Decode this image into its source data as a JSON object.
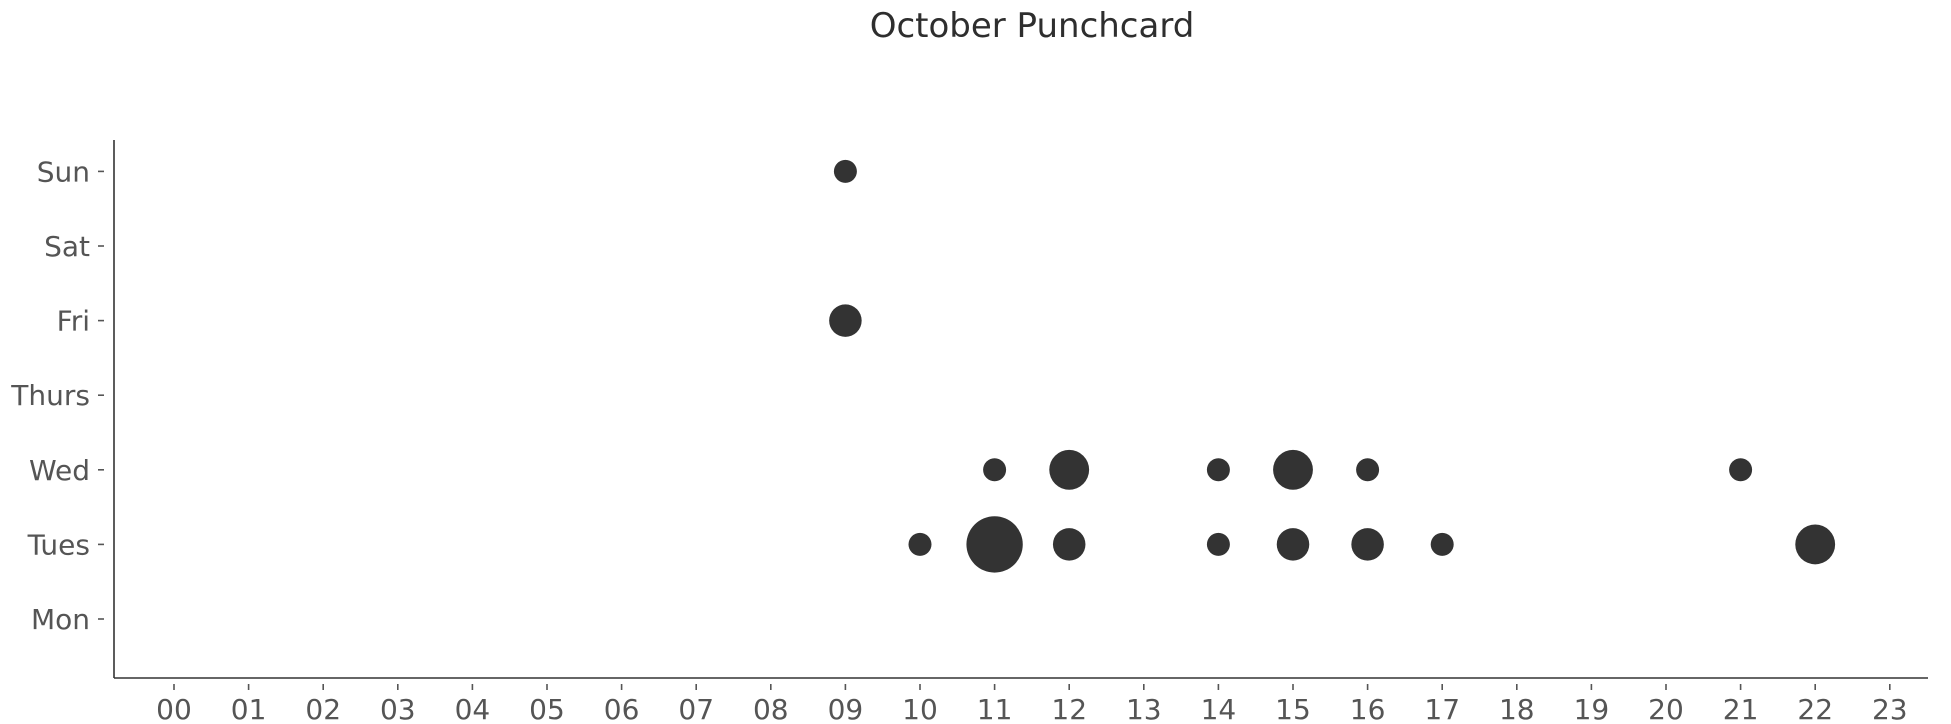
{
  "chart_data": {
    "type": "scatter",
    "title": "October Punchcard",
    "xlabel": "",
    "ylabel": "",
    "x_categories": [
      "00",
      "01",
      "02",
      "03",
      "04",
      "05",
      "06",
      "07",
      "08",
      "09",
      "10",
      "11",
      "12",
      "13",
      "14",
      "15",
      "16",
      "17",
      "18",
      "19",
      "20",
      "21",
      "22",
      "23"
    ],
    "y_categories": [
      "Mon",
      "Tues",
      "Wed",
      "Thurs",
      "Fri",
      "Sat",
      "Sun"
    ],
    "grid": false,
    "legend": "none",
    "marker_color": "#2b2b2b",
    "size_encoding": "count",
    "points": [
      {
        "day": "Sun",
        "hour": "09",
        "count": 1
      },
      {
        "day": "Fri",
        "hour": "09",
        "count": 2
      },
      {
        "day": "Wed",
        "hour": "11",
        "count": 1
      },
      {
        "day": "Wed",
        "hour": "12",
        "count": 3
      },
      {
        "day": "Wed",
        "hour": "14",
        "count": 1
      },
      {
        "day": "Wed",
        "hour": "15",
        "count": 3
      },
      {
        "day": "Wed",
        "hour": "16",
        "count": 1
      },
      {
        "day": "Wed",
        "hour": "21",
        "count": 1
      },
      {
        "day": "Tues",
        "hour": "10",
        "count": 1
      },
      {
        "day": "Tues",
        "hour": "11",
        "count": 6
      },
      {
        "day": "Tues",
        "hour": "12",
        "count": 2
      },
      {
        "day": "Tues",
        "hour": "14",
        "count": 1
      },
      {
        "day": "Tues",
        "hour": "15",
        "count": 2
      },
      {
        "day": "Tues",
        "hour": "16",
        "count": 2
      },
      {
        "day": "Tues",
        "hour": "17",
        "count": 1
      },
      {
        "day": "Tues",
        "hour": "22",
        "count": 3
      }
    ]
  }
}
